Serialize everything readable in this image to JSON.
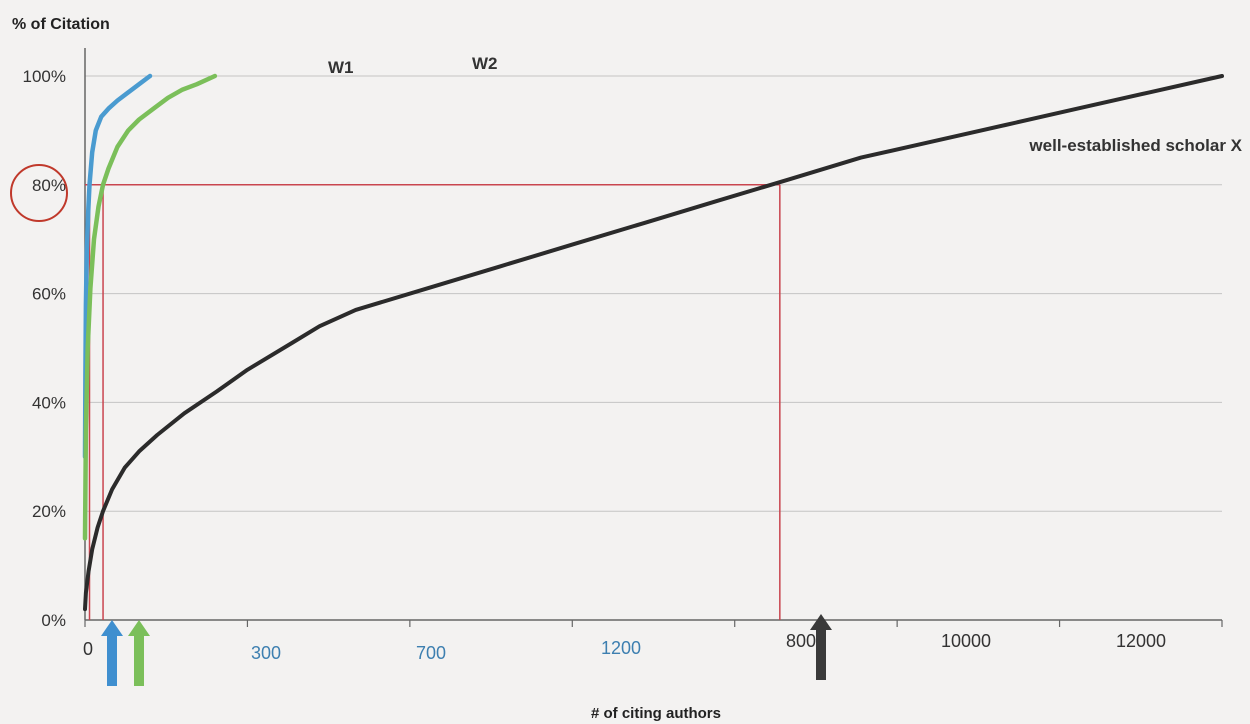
{
  "chart_data": {
    "type": "line",
    "ylabel": "% of Citation",
    "xlabel": "# of citing authors",
    "y_ticks": [
      "0%",
      "20%",
      "40%",
      "60%",
      "80%",
      "100%"
    ],
    "ylim": [
      0,
      100
    ],
    "x_ticks": [
      {
        "label": "0",
        "color": "#333333"
      },
      {
        "label": "300",
        "color": "#3d7fb0"
      },
      {
        "label": "700",
        "color": "#3d7fb0"
      },
      {
        "label": "1200",
        "color": "#3d7fb0"
      },
      {
        "label": "8000",
        "color": "#333333"
      },
      {
        "label": "10000",
        "color": "#333333"
      },
      {
        "label": "12000",
        "color": "#333333"
      }
    ],
    "grid": true,
    "series": [
      {
        "name": "W1",
        "color": "#4a9bd0",
        "points": [
          [
            0.0,
            30
          ],
          [
            0.02,
            45
          ],
          [
            0.05,
            58
          ],
          [
            0.1,
            68
          ],
          [
            0.18,
            75
          ],
          [
            0.25,
            80
          ],
          [
            0.4,
            86
          ],
          [
            0.6,
            90
          ],
          [
            0.9,
            92.5
          ],
          [
            1.3,
            94
          ],
          [
            1.8,
            95.5
          ],
          [
            2.4,
            97
          ],
          [
            3.0,
            98.5
          ],
          [
            3.6,
            100.0
          ]
        ]
      },
      {
        "name": "W2",
        "color": "#7bbf5a",
        "points": [
          [
            0.0,
            15
          ],
          [
            0.05,
            35
          ],
          [
            0.15,
            50
          ],
          [
            0.3,
            61
          ],
          [
            0.5,
            70
          ],
          [
            0.75,
            76
          ],
          [
            1.0,
            80
          ],
          [
            1.3,
            83
          ],
          [
            1.8,
            87
          ],
          [
            2.4,
            90
          ],
          [
            3.0,
            92
          ],
          [
            3.8,
            94
          ],
          [
            4.6,
            96
          ],
          [
            5.4,
            97.5
          ],
          [
            6.2,
            98.5
          ],
          [
            7.2,
            100.0
          ]
        ]
      },
      {
        "name": "well-established scholar X",
        "color": "#2b2b2b",
        "points": [
          [
            0.0,
            2
          ],
          [
            0.05,
            5
          ],
          [
            0.2,
            9
          ],
          [
            0.4,
            13
          ],
          [
            0.7,
            17
          ],
          [
            1.0,
            20
          ],
          [
            1.5,
            24
          ],
          [
            2.2,
            28
          ],
          [
            3.0,
            31
          ],
          [
            4.0,
            34
          ],
          [
            5.5,
            38
          ],
          [
            7.3,
            42
          ],
          [
            9.0,
            46
          ],
          [
            11.5,
            51
          ],
          [
            13.0,
            54
          ],
          [
            15.0,
            57
          ],
          [
            19.0,
            61
          ],
          [
            23.0,
            65
          ],
          [
            27.0,
            69
          ],
          [
            31.0,
            73
          ],
          [
            35.0,
            77
          ],
          [
            39.0,
            81
          ],
          [
            43.0,
            85
          ],
          [
            47.0,
            88
          ],
          [
            51.0,
            91
          ],
          [
            55.0,
            94
          ],
          [
            59.0,
            97
          ],
          [
            63.0,
            100.0
          ]
        ]
      }
    ],
    "reference_lines": {
      "y": 80,
      "x_drops": [
        0.25,
        1.0,
        38.5
      ],
      "color": "#c9454f"
    },
    "arrows": [
      {
        "x": 0.25,
        "color": "#3f8fcf"
      },
      {
        "x": 1.0,
        "color": "#7bbf5a"
      },
      {
        "x": 38.5,
        "color": "#3a3a3a"
      }
    ],
    "highlight_circle": {
      "tick": "80%",
      "color": "#c0392b"
    }
  }
}
